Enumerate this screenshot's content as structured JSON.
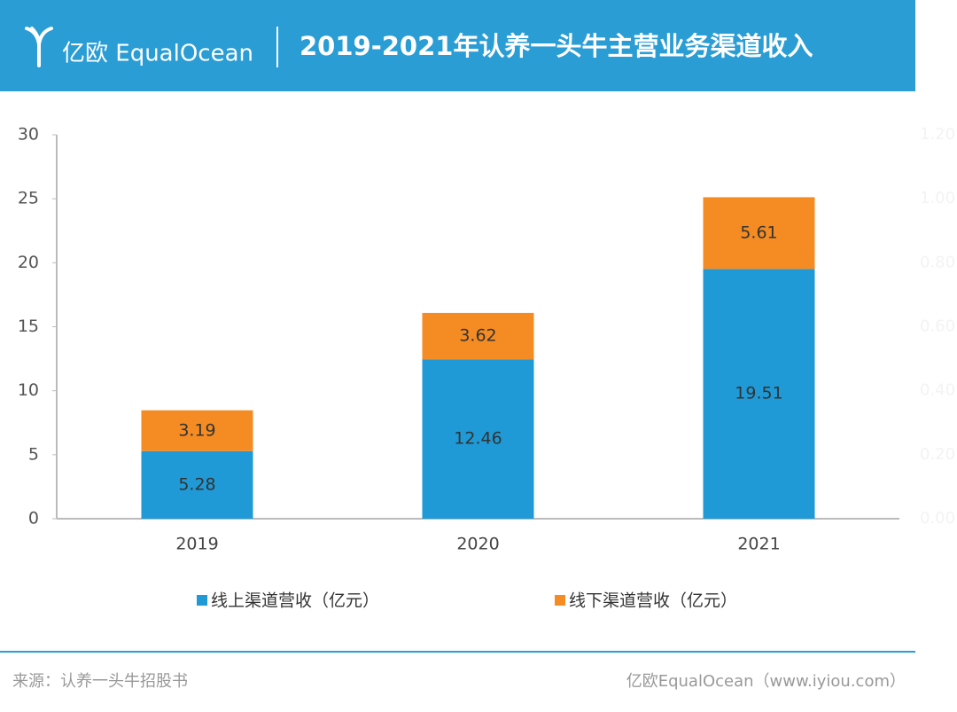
{
  "header": {
    "logo": "亿欧 EqualOcean",
    "title": "2019-2021年认养一头牛主营业务渠道收入"
  },
  "chart_data": {
    "type": "bar",
    "stacked": true,
    "categories": [
      "2019",
      "2020",
      "2021"
    ],
    "series": [
      {
        "name": "线上渠道营收（亿元）",
        "color": "#1f9ad6",
        "values": [
          5.28,
          12.46,
          19.51
        ]
      },
      {
        "name": "线下渠道营收（亿元）",
        "color": "#f48c23",
        "values": [
          3.19,
          3.62,
          5.61
        ]
      }
    ],
    "ylim": [
      0,
      30
    ],
    "yticks": [
      0,
      5,
      10,
      15,
      20,
      25,
      30
    ],
    "y2lim": [
      0,
      1.2
    ],
    "y2ticks": [
      {
        "value": 0,
        "label": "0.00"
      },
      {
        "value": 0.2,
        "label": "0.20"
      },
      {
        "value": 0.4,
        "label": "0.40"
      },
      {
        "value": 0.6,
        "label": "0.60"
      },
      {
        "value": 0.8,
        "label": "0.80"
      },
      {
        "value": 1.0,
        "label": "1.00"
      },
      {
        "value": 1.2,
        "label": "1.20"
      }
    ]
  },
  "footer": {
    "source": "来源：认养一头牛招股书",
    "credit": "亿欧EqualOcean（www.iyiou.com）"
  }
}
